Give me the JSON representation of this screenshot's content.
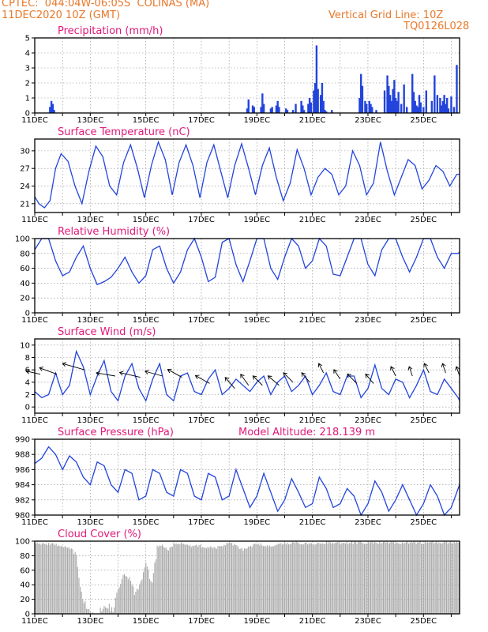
{
  "header": {
    "line1": "CPTEC:  044:04W-06:05S  COLINAS (MA)",
    "line2": "11DEC2020 10Z (GMT)",
    "grid_note": "Vertical Grid Line: 10Z",
    "run_id": "TQ0126L028"
  },
  "colors": {
    "header": "#e8782a",
    "title": "#e0197a",
    "series": "#2244dd",
    "cloud": "#a8a8a8",
    "grid": "#888888"
  },
  "x_labels": [
    "11DEC",
    "13DEC",
    "15DEC",
    "17DEC",
    "19DEC",
    "21DEC",
    "23DEC",
    "25DEC"
  ],
  "x_range_days": [
    0,
    15.3
  ],
  "chart_data": [
    {
      "id": "precip",
      "type": "bar",
      "title": "Precipitation (mm/h)",
      "ylim": [
        0,
        5
      ],
      "yticks": [
        0,
        1,
        2,
        3,
        4,
        5
      ],
      "x_days": [
        0.55,
        0.6,
        0.65,
        0.7,
        7.65,
        7.7,
        7.85,
        7.9,
        8.15,
        8.2,
        8.25,
        8.5,
        8.55,
        8.7,
        8.75,
        8.8,
        9.05,
        9.1,
        9.3,
        9.4,
        9.6,
        9.65,
        9.7,
        9.85,
        9.9,
        9.95,
        10.05,
        10.1,
        10.15,
        10.2,
        10.3,
        10.35,
        10.4,
        10.45,
        10.5,
        10.7,
        11.7,
        11.75,
        11.8,
        11.9,
        11.95,
        12.05,
        12.1,
        12.15,
        12.3,
        12.6,
        12.7,
        12.75,
        12.8,
        12.85,
        12.9,
        12.95,
        13.0,
        13.05,
        13.1,
        13.2,
        13.3,
        13.4,
        13.6,
        13.65,
        13.7,
        13.75,
        13.8,
        13.85,
        13.9,
        14.0,
        14.1,
        14.3,
        14.4,
        14.5,
        14.6,
        14.65,
        14.7,
        14.75,
        14.8,
        14.85,
        14.9,
        15.0,
        15.1,
        15.2
      ],
      "values": [
        0.4,
        0.8,
        0.6,
        0.2,
        0.3,
        0.9,
        0.5,
        0.4,
        0.4,
        1.3,
        0.6,
        0.3,
        0.4,
        0.5,
        0.8,
        0.4,
        0.3,
        0.2,
        0.2,
        0.6,
        0.8,
        0.5,
        0.2,
        0.6,
        1.0,
        0.7,
        1.5,
        2.0,
        4.5,
        1.6,
        1.2,
        2.0,
        0.8,
        0.2,
        0.1,
        0.2,
        1.0,
        2.6,
        1.8,
        0.8,
        0.6,
        0.8,
        0.6,
        0.4,
        0.2,
        1.5,
        2.5,
        1.8,
        1.2,
        0.8,
        1.6,
        2.2,
        1.0,
        0.8,
        1.4,
        0.6,
        1.9,
        0.4,
        2.6,
        1.4,
        0.8,
        0.5,
        0.4,
        1.2,
        0.7,
        0.4,
        1.5,
        0.8,
        2.5,
        1.2,
        1.0,
        0.5,
        0.8,
        1.2,
        0.6,
        1.0,
        0.3,
        1.1,
        0.4,
        3.2
      ]
    },
    {
      "id": "temp",
      "type": "line",
      "title": "Surface Temperature (nC)",
      "ylim": [
        19.5,
        32
      ],
      "yticks": [
        21,
        24,
        27,
        30
      ],
      "x_days": [
        0,
        0.15,
        0.35,
        0.55,
        0.75,
        0.95,
        1.2,
        1.45,
        1.7,
        1.95,
        2.2,
        2.45,
        2.7,
        2.95,
        3.2,
        3.45,
        3.7,
        3.95,
        4.2,
        4.45,
        4.7,
        4.95,
        5.2,
        5.45,
        5.7,
        5.95,
        6.2,
        6.45,
        6.7,
        6.95,
        7.2,
        7.45,
        7.7,
        7.95,
        8.2,
        8.45,
        8.7,
        8.95,
        9.2,
        9.45,
        9.7,
        9.95,
        10.2,
        10.45,
        10.7,
        10.95,
        11.2,
        11.45,
        11.7,
        11.95,
        12.2,
        12.45,
        12.7,
        12.95,
        13.2,
        13.45,
        13.7,
        13.95,
        14.2,
        14.45,
        14.7,
        14.95,
        15.2,
        15.3
      ],
      "values": [
        22.2,
        21.0,
        20.3,
        21.5,
        27.0,
        29.5,
        28.2,
        24.0,
        21.0,
        26.5,
        30.8,
        29.0,
        24.0,
        22.5,
        28.0,
        31.0,
        27.0,
        22.0,
        27.5,
        31.5,
        28.5,
        22.5,
        28.0,
        31.0,
        27.5,
        22.0,
        28.0,
        31.0,
        26.5,
        22.0,
        27.5,
        31.2,
        27.0,
        22.5,
        27.5,
        30.5,
        25.5,
        21.5,
        24.5,
        30.2,
        27.0,
        22.5,
        25.5,
        27.0,
        26.0,
        22.5,
        24.0,
        30.0,
        27.5,
        22.5,
        24.5,
        31.5,
        26.5,
        22.5,
        25.5,
        28.5,
        27.5,
        23.5,
        25.0,
        27.5,
        26.5,
        24.0,
        26.0,
        26.0
      ]
    },
    {
      "id": "rh",
      "type": "line",
      "title": "Relative Humidity (%)",
      "ylim": [
        0,
        100
      ],
      "yticks": [
        0,
        20,
        40,
        60,
        80,
        100
      ],
      "x_days": [
        0,
        0.25,
        0.5,
        0.75,
        1.0,
        1.25,
        1.5,
        1.75,
        2.0,
        2.25,
        2.5,
        2.75,
        3.0,
        3.25,
        3.5,
        3.75,
        4.0,
        4.25,
        4.5,
        4.75,
        5.0,
        5.25,
        5.5,
        5.75,
        6.0,
        6.25,
        6.5,
        6.75,
        7.0,
        7.25,
        7.5,
        7.75,
        8.0,
        8.25,
        8.5,
        8.75,
        9.0,
        9.25,
        9.5,
        9.75,
        10.0,
        10.25,
        10.5,
        10.75,
        11.0,
        11.25,
        11.5,
        11.75,
        12.0,
        12.25,
        12.5,
        12.75,
        13.0,
        13.25,
        13.5,
        13.75,
        14.0,
        14.25,
        14.5,
        14.75,
        15.0,
        15.25,
        15.3
      ],
      "values": [
        85,
        100,
        100,
        70,
        50,
        55,
        75,
        90,
        60,
        38,
        42,
        48,
        60,
        75,
        55,
        40,
        50,
        85,
        90,
        60,
        40,
        55,
        85,
        100,
        75,
        42,
        48,
        95,
        100,
        65,
        42,
        70,
        100,
        100,
        60,
        45,
        75,
        100,
        90,
        60,
        70,
        100,
        90,
        52,
        50,
        75,
        100,
        100,
        65,
        50,
        85,
        100,
        100,
        75,
        55,
        75,
        100,
        100,
        75,
        60,
        80,
        80,
        82
      ]
    },
    {
      "id": "wind",
      "type": "line",
      "title": "Surface Wind (m/s)",
      "ylim": [
        -1,
        11
      ],
      "yticks": [
        0,
        2,
        4,
        6,
        8,
        10
      ],
      "x_days": [
        0,
        0.25,
        0.5,
        0.75,
        1.0,
        1.25,
        1.5,
        1.75,
        2.0,
        2.25,
        2.5,
        2.75,
        3.0,
        3.25,
        3.5,
        3.75,
        4.0,
        4.25,
        4.5,
        4.75,
        5.0,
        5.25,
        5.5,
        5.75,
        6.0,
        6.25,
        6.5,
        6.75,
        7.0,
        7.25,
        7.5,
        7.75,
        8.0,
        8.25,
        8.5,
        8.75,
        9.0,
        9.25,
        9.5,
        9.75,
        10.0,
        10.25,
        10.5,
        10.75,
        11.0,
        11.25,
        11.5,
        11.75,
        12.0,
        12.25,
        12.5,
        12.75,
        13.0,
        13.25,
        13.5,
        13.75,
        14.0,
        14.25,
        14.5,
        14.75,
        15.0,
        15.25,
        15.3
      ],
      "values": [
        2.5,
        1.5,
        2.0,
        5.5,
        2.0,
        3.5,
        9.0,
        6.5,
        2.0,
        5.0,
        7.5,
        2.5,
        1.0,
        5.0,
        7.0,
        3.0,
        1.0,
        4.5,
        7.0,
        2.0,
        1.0,
        5.0,
        5.5,
        2.5,
        2.0,
        4.5,
        6.0,
        2.0,
        3.0,
        4.5,
        3.5,
        2.5,
        4.0,
        5.0,
        2.0,
        4.0,
        5.0,
        2.5,
        3.5,
        5.0,
        2.0,
        3.5,
        5.5,
        2.5,
        2.0,
        5.0,
        5.0,
        1.5,
        3.0,
        6.8,
        3.0,
        2.0,
        4.5,
        4.0,
        1.5,
        3.5,
        6.0,
        2.5,
        2.0,
        4.5,
        3.0,
        1.5,
        1.0
      ],
      "arrows_x_days": [
        0.2,
        0.8,
        1.8,
        2.9,
        3.8,
        4.6,
        5.3,
        6.3,
        7.2,
        7.7,
        8.2,
        8.8,
        9.3,
        9.9,
        10.4,
        11.0,
        11.6,
        12.2,
        13.0,
        13.6,
        14.2,
        14.8,
        15.3
      ],
      "arrows_y": [
        5.3,
        5.3,
        6.0,
        5.0,
        4.8,
        5.0,
        4.8,
        3.8,
        3.0,
        3.5,
        3.5,
        3.5,
        4.0,
        4.0,
        5.5,
        4.5,
        3.8,
        3.8,
        5.0,
        5.0,
        5.5,
        5.5,
        5.0
      ],
      "arrows_dx": [
        -18,
        -22,
        -28,
        -24,
        -26,
        -22,
        -18,
        -18,
        -12,
        -10,
        -12,
        -14,
        -12,
        -10,
        -6,
        -8,
        -12,
        -10,
        -6,
        -4,
        -6,
        -4,
        -4
      ],
      "arrows_dy": [
        -4,
        -8,
        -8,
        -4,
        -6,
        -6,
        -10,
        -10,
        -14,
        -14,
        -12,
        -12,
        -12,
        -12,
        -12,
        -12,
        -12,
        -12,
        -12,
        -12,
        -12,
        -12,
        -12
      ]
    },
    {
      "id": "pres",
      "type": "line",
      "title": "Surface Pressure (hPa)",
      "ylim": [
        980,
        990
      ],
      "yticks": [
        980,
        982,
        984,
        986,
        988,
        990
      ],
      "altitude_label": "Model Altitude: 218.139 m",
      "x_days": [
        0,
        0.25,
        0.5,
        0.75,
        1.0,
        1.25,
        1.5,
        1.75,
        2.0,
        2.25,
        2.5,
        2.75,
        3.0,
        3.25,
        3.5,
        3.75,
        4.0,
        4.25,
        4.5,
        4.75,
        5.0,
        5.25,
        5.5,
        5.75,
        6.0,
        6.25,
        6.5,
        6.75,
        7.0,
        7.25,
        7.5,
        7.75,
        8.0,
        8.25,
        8.5,
        8.75,
        9.0,
        9.25,
        9.5,
        9.75,
        10.0,
        10.25,
        10.5,
        10.75,
        11.0,
        11.25,
        11.5,
        11.75,
        12.0,
        12.25,
        12.5,
        12.75,
        13.0,
        13.25,
        13.5,
        13.75,
        14.0,
        14.25,
        14.5,
        14.75,
        15.0,
        15.25,
        15.3
      ],
      "values": [
        986.8,
        987.5,
        989.0,
        988.0,
        986.0,
        987.8,
        987.0,
        985.0,
        984.0,
        987.0,
        986.5,
        984.0,
        983.0,
        986.0,
        985.5,
        982.0,
        982.5,
        986.0,
        985.5,
        983.0,
        982.5,
        986.0,
        985.5,
        982.5,
        982.0,
        985.5,
        985.0,
        982.0,
        982.5,
        986.0,
        983.5,
        981.0,
        982.5,
        985.5,
        983.0,
        980.5,
        982.0,
        984.8,
        983.0,
        981.0,
        981.5,
        985.0,
        983.5,
        981.0,
        981.5,
        983.5,
        982.5,
        980.0,
        981.5,
        984.5,
        983.0,
        980.5,
        982.0,
        984.0,
        982.0,
        980.0,
        981.5,
        984.0,
        982.5,
        980.0,
        981.0,
        983.5,
        984.0
      ]
    },
    {
      "id": "cloud",
      "type": "area",
      "title": "Cloud Cover (%)",
      "ylim": [
        0,
        100
      ],
      "yticks": [
        0,
        20,
        40,
        60,
        80,
        100
      ],
      "x_days": [
        0,
        0.5,
        1.0,
        1.5,
        1.6,
        1.8,
        2.0,
        2.2,
        2.5,
        2.8,
        3.0,
        3.2,
        3.4,
        3.6,
        3.8,
        4.0,
        4.2,
        4.4,
        4.6,
        4.8,
        5.0,
        5.3,
        5.6,
        6.0,
        6.5,
        7.0,
        7.5,
        8.0,
        8.5,
        9.0,
        9.5,
        10.0,
        10.5,
        11.0,
        11.5,
        12.0,
        12.5,
        13.0,
        13.5,
        14.0,
        14.5,
        15.0,
        15.3
      ],
      "values": [
        100,
        98,
        96,
        88,
        40,
        20,
        5,
        0,
        20,
        10,
        40,
        60,
        55,
        30,
        50,
        75,
        45,
        95,
        97,
        90,
        98,
        100,
        96,
        95,
        92,
        100,
        90,
        98,
        95,
        99,
        100,
        98,
        100,
        99,
        100,
        100,
        100,
        100,
        100,
        100,
        100,
        100,
        100
      ]
    }
  ]
}
